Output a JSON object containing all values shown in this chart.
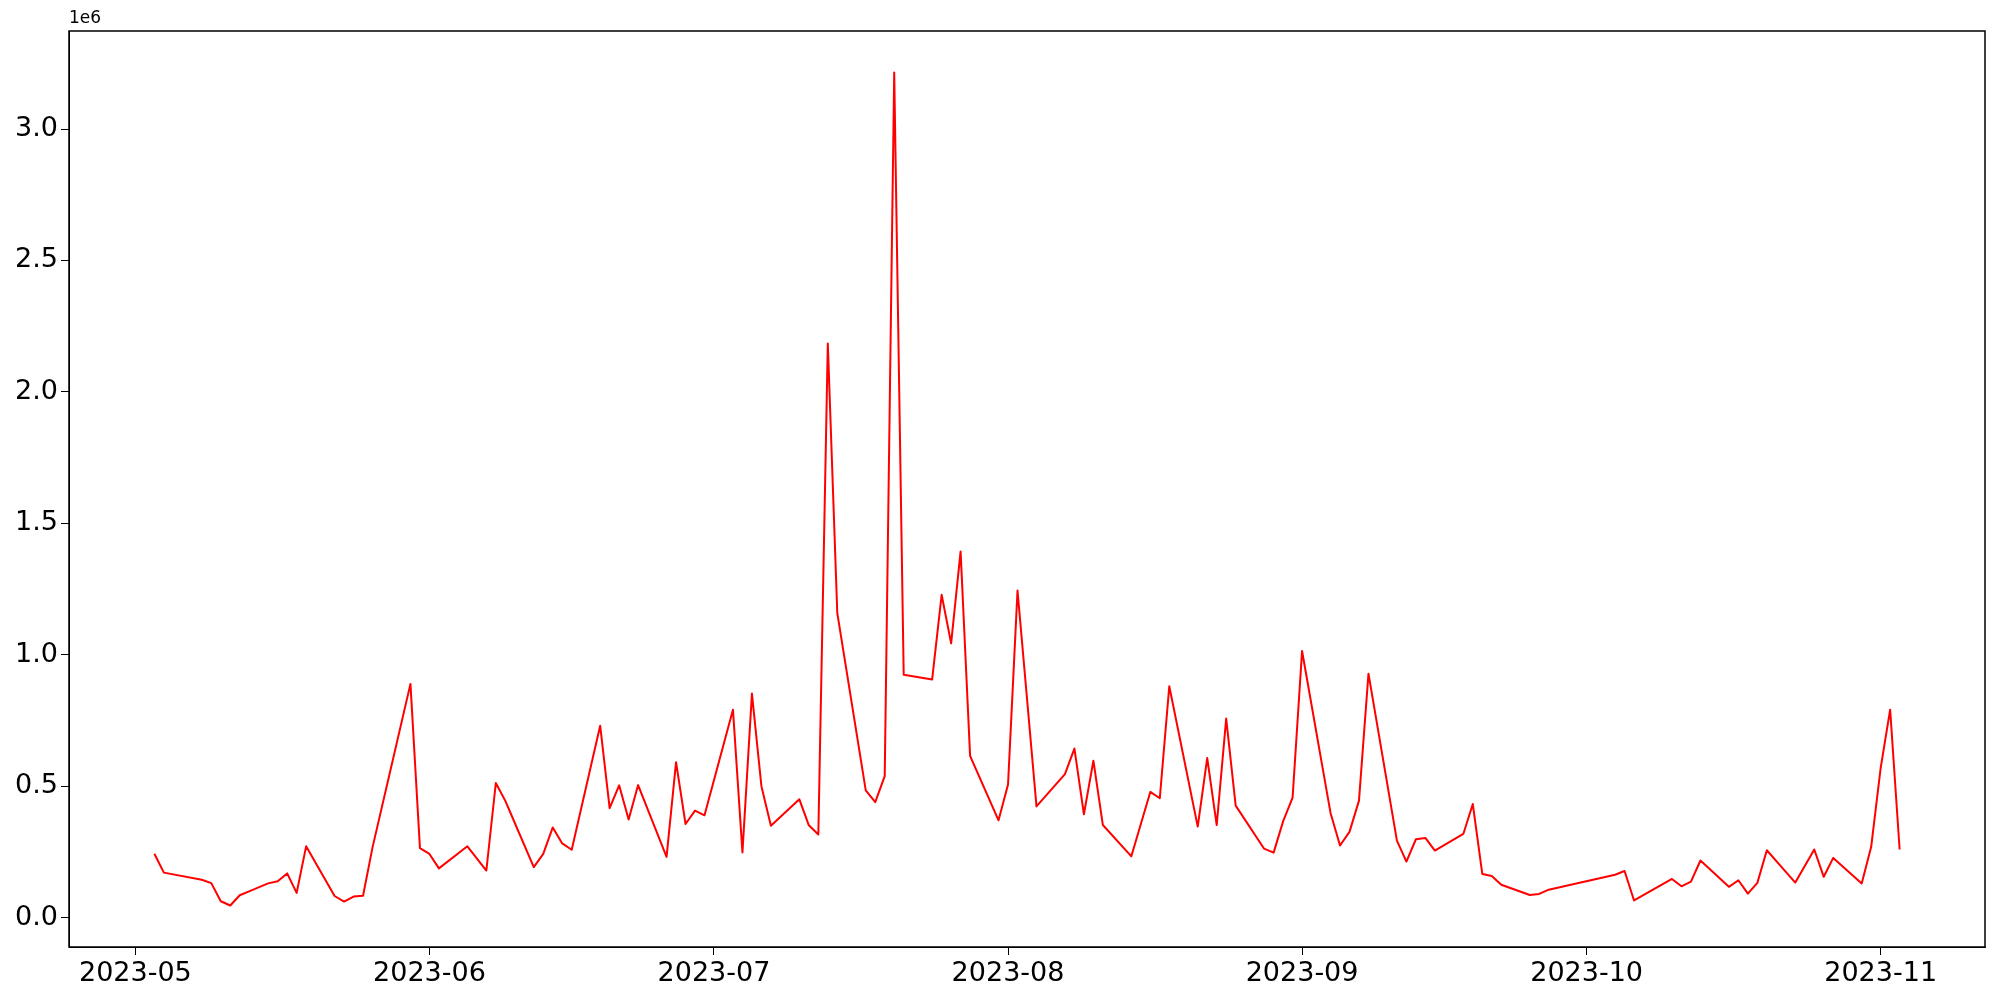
{
  "chart_data": {
    "type": "line",
    "color": "#ff0000",
    "x": [
      "2023-05-03",
      "2023-05-04",
      "2023-05-08",
      "2023-05-09",
      "2023-05-10",
      "2023-05-11",
      "2023-05-12",
      "2023-05-15",
      "2023-05-16",
      "2023-05-17",
      "2023-05-18",
      "2023-05-19",
      "2023-05-22",
      "2023-05-23",
      "2023-05-24",
      "2023-05-25",
      "2023-05-26",
      "2023-05-30",
      "2023-05-31",
      "2023-06-01",
      "2023-06-02",
      "2023-06-05",
      "2023-06-07",
      "2023-06-08",
      "2023-06-09",
      "2023-06-12",
      "2023-06-13",
      "2023-06-14",
      "2023-06-15",
      "2023-06-16",
      "2023-06-19",
      "2023-06-20",
      "2023-06-21",
      "2023-06-22",
      "2023-06-23",
      "2023-06-26",
      "2023-06-27",
      "2023-06-28",
      "2023-06-29",
      "2023-06-30",
      "2023-07-03",
      "2023-07-04",
      "2023-07-05",
      "2023-07-06",
      "2023-07-07",
      "2023-07-10",
      "2023-07-11",
      "2023-07-12",
      "2023-07-13",
      "2023-07-14",
      "2023-07-17",
      "2023-07-18",
      "2023-07-19",
      "2023-07-20",
      "2023-07-21",
      "2023-07-24",
      "2023-07-25",
      "2023-07-26",
      "2023-07-27",
      "2023-07-28",
      "2023-07-31",
      "2023-08-01",
      "2023-08-02",
      "2023-08-04",
      "2023-08-07",
      "2023-08-08",
      "2023-08-09",
      "2023-08-10",
      "2023-08-11",
      "2023-08-14",
      "2023-08-16",
      "2023-08-17",
      "2023-08-18",
      "2023-08-21",
      "2023-08-22",
      "2023-08-23",
      "2023-08-24",
      "2023-08-25",
      "2023-08-28",
      "2023-08-29",
      "2023-08-30",
      "2023-08-31",
      "2023-09-01",
      "2023-09-04",
      "2023-09-05",
      "2023-09-06",
      "2023-09-07",
      "2023-09-08",
      "2023-09-11",
      "2023-09-12",
      "2023-09-13",
      "2023-09-14",
      "2023-09-15",
      "2023-09-18",
      "2023-09-19",
      "2023-09-20",
      "2023-09-21",
      "2023-09-22",
      "2023-09-25",
      "2023-09-26",
      "2023-09-27",
      "2023-10-04",
      "2023-10-05",
      "2023-10-06",
      "2023-10-10",
      "2023-10-11",
      "2023-10-12",
      "2023-10-13",
      "2023-10-16",
      "2023-10-17",
      "2023-10-18",
      "2023-10-19",
      "2023-10-20",
      "2023-10-23",
      "2023-10-25",
      "2023-10-26",
      "2023-10-27",
      "2023-10-30",
      "2023-10-31",
      "2023-11-01",
      "2023-11-02",
      "2023-11-03"
    ],
    "values": [
      0.243,
      0.171,
      0.144,
      0.131,
      0.062,
      0.046,
      0.085,
      0.13,
      0.138,
      0.168,
      0.094,
      0.271,
      0.082,
      0.061,
      0.08,
      0.083,
      0.267,
      0.889,
      0.264,
      0.242,
      0.187,
      0.271,
      0.179,
      0.512,
      0.444,
      0.192,
      0.242,
      0.343,
      0.282,
      0.258,
      0.73,
      0.416,
      0.503,
      0.373,
      0.504,
      0.231,
      0.591,
      0.356,
      0.407,
      0.389,
      0.791,
      0.248,
      0.852,
      0.5,
      0.349,
      0.45,
      0.351,
      0.316,
      2.184,
      1.158,
      0.484,
      0.439,
      0.538,
      3.215,
      0.924,
      0.906,
      1.228,
      1.043,
      1.393,
      0.615,
      0.37,
      0.506,
      1.244,
      0.423,
      0.546,
      0.643,
      0.393,
      0.597,
      0.352,
      0.233,
      0.478,
      0.454,
      0.88,
      0.346,
      0.607,
      0.352,
      0.757,
      0.426,
      0.262,
      0.247,
      0.366,
      0.456,
      1.014,
      0.398,
      0.274,
      0.326,
      0.445,
      0.928,
      0.293,
      0.213,
      0.298,
      0.303,
      0.255,
      0.318,
      0.432,
      0.166,
      0.158,
      0.125,
      0.086,
      0.09,
      0.106,
      0.163,
      0.177,
      0.065,
      0.147,
      0.119,
      0.137,
      0.217,
      0.117,
      0.142,
      0.091,
      0.132,
      0.256,
      0.133,
      0.259,
      0.155,
      0.227,
      0.13,
      0.269,
      0.569,
      0.791,
      0.259
    ],
    "xlim": [
      "2023-04-24",
      "2023-11-12"
    ],
    "xticks": [
      "2023-05",
      "2023-06",
      "2023-07",
      "2023-08",
      "2023-09",
      "2023-10",
      "2023-11"
    ],
    "ylim": [
      -0.112,
      3.373
    ],
    "yticks": [
      {
        "value": 0,
        "label": "0.0"
      },
      0.5,
      {
        "value": 1,
        "label": "1.0"
      },
      1.5,
      {
        "value": 2,
        "label": "2.0"
      },
      2.5,
      {
        "value": 3,
        "label": "3.0"
      }
    ],
    "annotations": [
      "1e6"
    ]
  }
}
